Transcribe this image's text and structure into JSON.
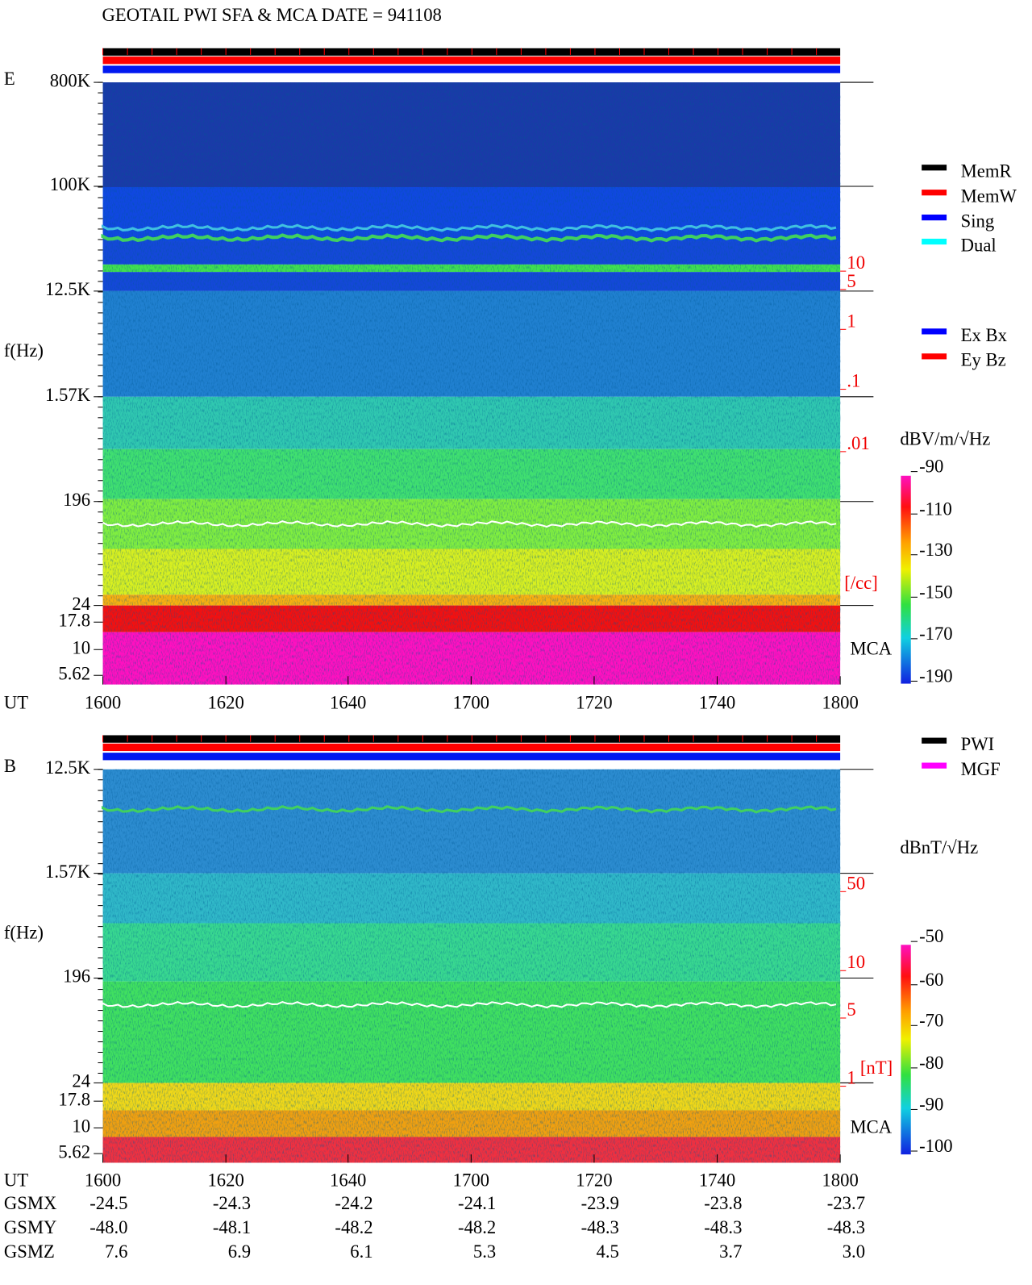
{
  "title": "GEOTAIL  PWI SFA & MCA   DATE = 941108",
  "time_axis": {
    "label": "UT",
    "ticks": [
      "1600",
      "1620",
      "1640",
      "1700",
      "1720",
      "1740",
      "1800"
    ]
  },
  "panels": [
    {
      "label": "E",
      "y_axis_label": "f(Hz)",
      "freq_ticks": [
        "800K",
        "100K",
        "12.5K",
        "1.57K",
        "196",
        "24",
        "17.8",
        "10",
        "5.62"
      ],
      "density_ticks": [
        "10",
        "5",
        "1",
        ".1",
        ".01"
      ],
      "density_unit": "[/cc]",
      "mca": "MCA",
      "colorbar_unit": "dBV/m/√Hz",
      "colorbar_ticks": [
        "-90",
        "-110",
        "-130",
        "-150",
        "-170",
        "-190"
      ],
      "legend": [
        {
          "name": "MemR",
          "color": "#000000"
        },
        {
          "name": "MemW",
          "color": "#ff0000"
        },
        {
          "name": "Sing",
          "color": "#0000ff"
        },
        {
          "name": "Dual",
          "color": "#00ffff"
        },
        {
          "name": "Ex Bx",
          "color": "#0000ff"
        },
        {
          "name": "Ey Bz",
          "color": "#ff0000"
        }
      ]
    },
    {
      "label": "B",
      "y_axis_label": "f(Hz)",
      "freq_ticks": [
        "12.5K",
        "1.57K",
        "196",
        "24",
        "17.8",
        "10",
        "5.62"
      ],
      "density_ticks": [
        "50",
        "10",
        "5",
        "1"
      ],
      "density_unit": "[nT]",
      "mca": "MCA",
      "colorbar_unit": "dBnT/√Hz",
      "colorbar_ticks": [
        "-50",
        "-60",
        "-70",
        "-80",
        "-90",
        "-100"
      ],
      "legend": [
        {
          "name": "PWI",
          "color": "#000000"
        },
        {
          "name": "MGF",
          "color": "#ff00ff"
        }
      ]
    }
  ],
  "orbit": [
    {
      "label": "GSMX",
      "values": [
        "-24.5",
        "-24.3",
        "-24.2",
        "-24.1",
        "-23.9",
        "-23.8",
        "-23.7"
      ]
    },
    {
      "label": "GSMY",
      "values": [
        "-48.0",
        "-48.1",
        "-48.2",
        "-48.2",
        "-48.3",
        "-48.3",
        "-48.3"
      ]
    },
    {
      "label": "GSMZ",
      "values": [
        "7.6",
        "6.9",
        "6.1",
        "5.3",
        "4.5",
        "3.7",
        "3.0"
      ]
    }
  ]
}
